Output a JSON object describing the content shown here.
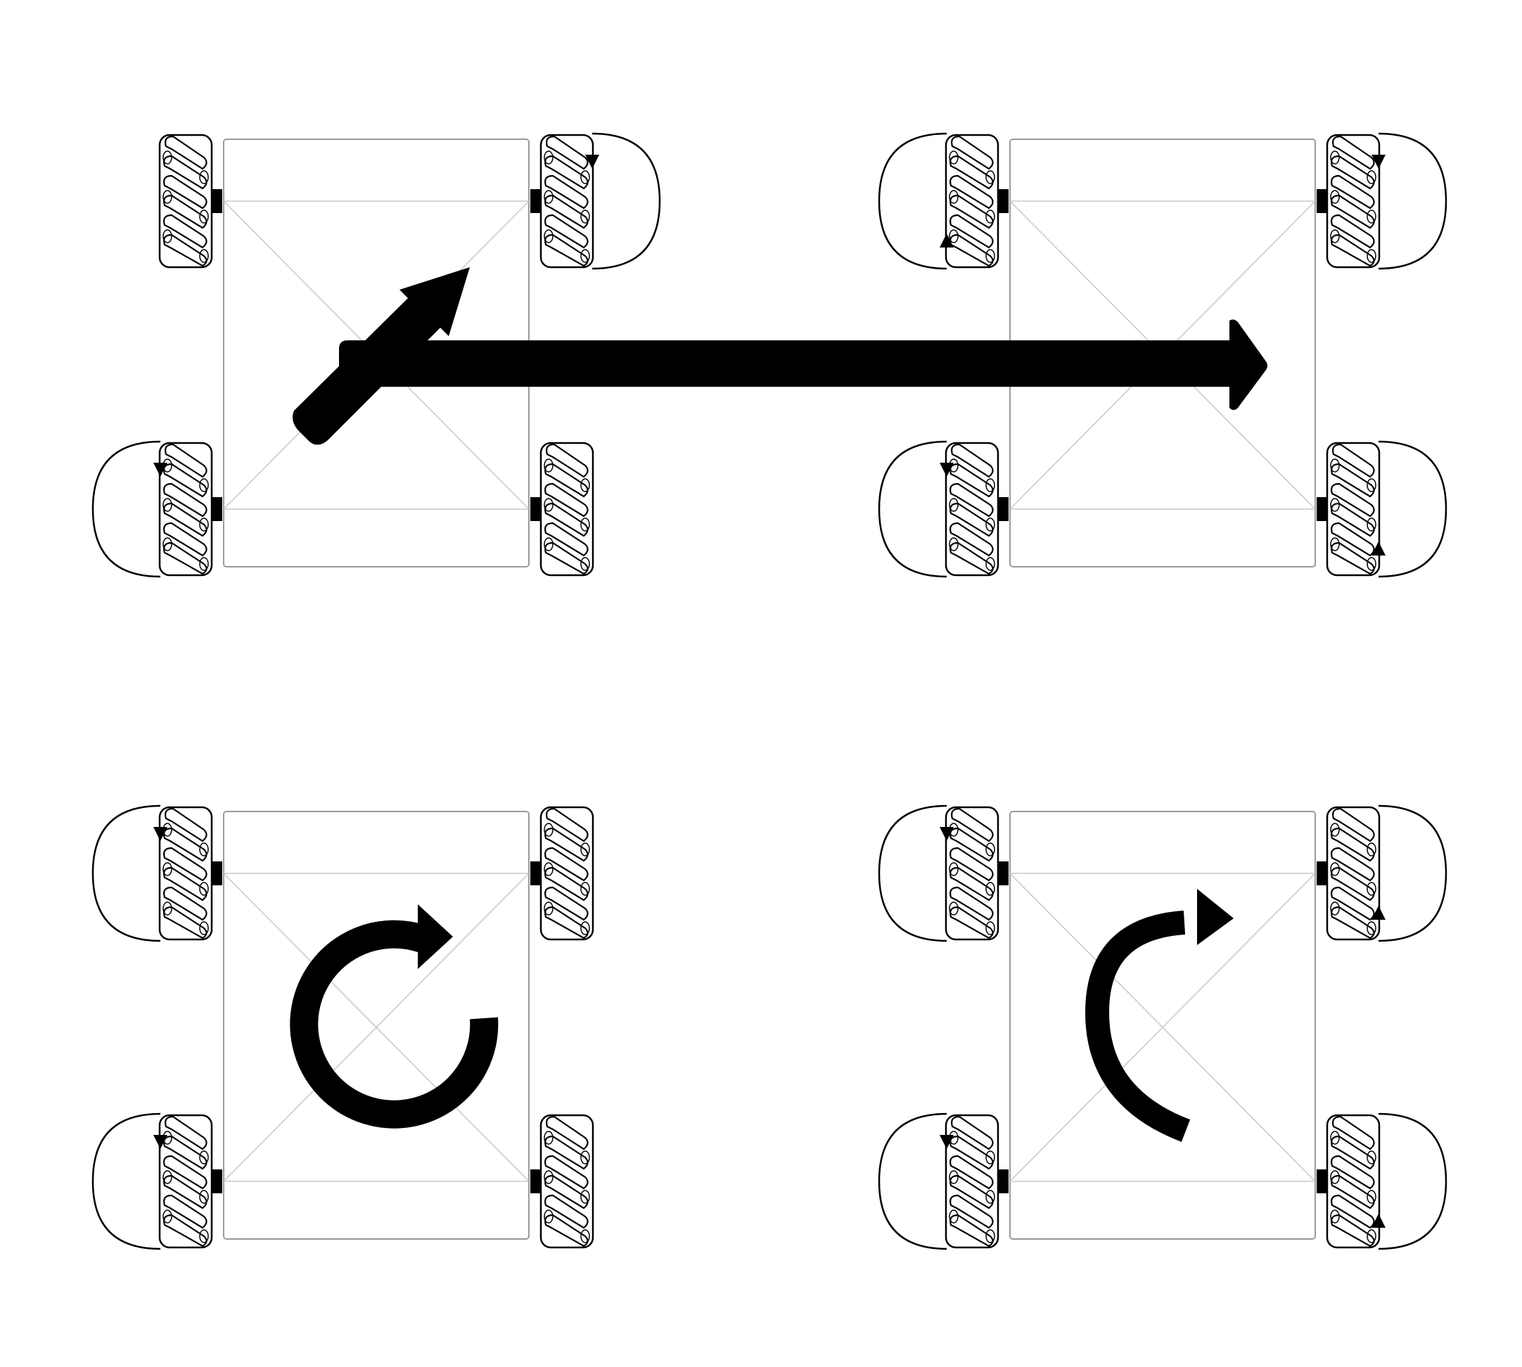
{
  "diagram": {
    "subject": "mecanum-wheel-robot-motion-modes",
    "colors": {
      "ink": "#000000",
      "frame": "#9a9a9a",
      "wheel-fill": "#ffffff",
      "background": "#ffffff"
    },
    "panels": [
      {
        "id": "diagonal",
        "motion_icon": "diagonal-arrow-icon",
        "wheels": [
          {
            "pos": "front-left",
            "rotation": "none"
          },
          {
            "pos": "front-right",
            "rotation": "forward"
          },
          {
            "pos": "rear-left",
            "rotation": "forward"
          },
          {
            "pos": "rear-right",
            "rotation": "none"
          }
        ]
      },
      {
        "id": "sideways",
        "motion_icon": "right-arrow-icon",
        "wheels": [
          {
            "pos": "front-left",
            "rotation": "backward"
          },
          {
            "pos": "front-right",
            "rotation": "forward"
          },
          {
            "pos": "rear-left",
            "rotation": "forward"
          },
          {
            "pos": "rear-right",
            "rotation": "backward"
          }
        ]
      },
      {
        "id": "pivot",
        "motion_icon": "rotate-arrow-icon",
        "wheels": [
          {
            "pos": "front-left",
            "rotation": "forward"
          },
          {
            "pos": "front-right",
            "rotation": "none"
          },
          {
            "pos": "rear-left",
            "rotation": "forward"
          },
          {
            "pos": "rear-right",
            "rotation": "none"
          }
        ]
      },
      {
        "id": "rotate-in-place",
        "motion_icon": "half-circle-arrow-icon",
        "wheels": [
          {
            "pos": "front-left",
            "rotation": "forward"
          },
          {
            "pos": "front-right",
            "rotation": "backward"
          },
          {
            "pos": "rear-left",
            "rotation": "forward"
          },
          {
            "pos": "rear-right",
            "rotation": "backward"
          }
        ]
      }
    ]
  }
}
